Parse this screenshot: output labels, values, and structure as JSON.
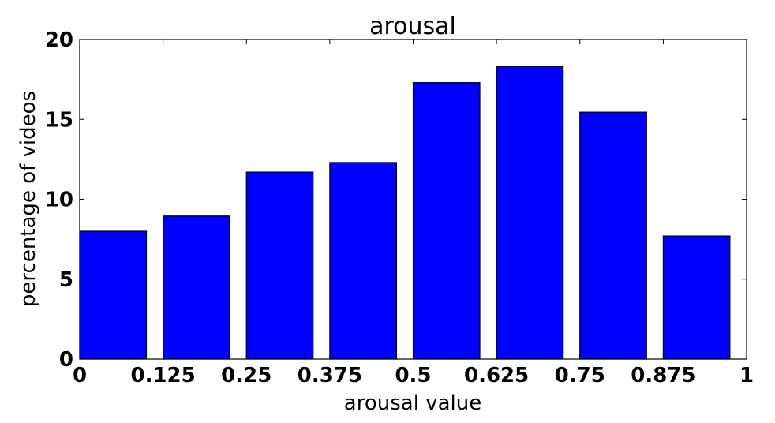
{
  "chart_data": {
    "type": "bar",
    "title": "arousal",
    "xlabel": "arousal value",
    "ylabel": "percentage of videos",
    "xlim": [
      0,
      1
    ],
    "ylim": [
      0,
      20
    ],
    "xticks": [
      0,
      0.125,
      0.25,
      0.375,
      0.5,
      0.625,
      0.75,
      0.875,
      1
    ],
    "xtick_labels": [
      "0",
      "0.125",
      "0.25",
      "0.375",
      "0.5",
      "0.625",
      "0.75",
      "0.875",
      "1"
    ],
    "yticks": [
      0,
      5,
      10,
      15,
      20
    ],
    "ytick_labels": [
      "0",
      "5",
      "10",
      "15",
      "20"
    ],
    "bar_width": 0.1,
    "bar_color": "#0000ff",
    "bars": [
      {
        "x": 0.0,
        "value": 8.0
      },
      {
        "x": 0.125,
        "value": 8.95
      },
      {
        "x": 0.25,
        "value": 11.7
      },
      {
        "x": 0.375,
        "value": 12.3
      },
      {
        "x": 0.5,
        "value": 17.3
      },
      {
        "x": 0.625,
        "value": 18.3
      },
      {
        "x": 0.75,
        "value": 15.45
      },
      {
        "x": 0.875,
        "value": 7.7
      }
    ],
    "grid": false,
    "legend": "none"
  }
}
